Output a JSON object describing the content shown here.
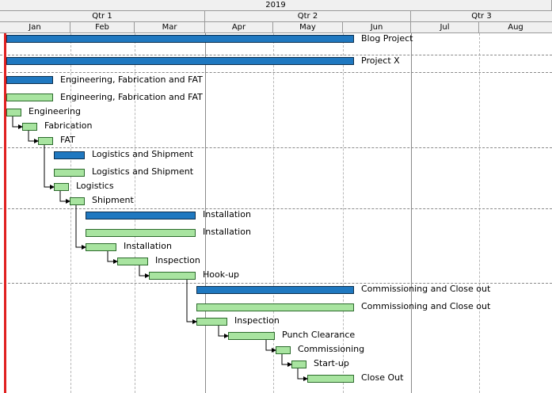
{
  "timescale": {
    "year": "2019",
    "quarters": [
      "Qtr 1",
      "Qtr 2",
      "Qtr 3"
    ],
    "months": [
      "Jan",
      "Feb",
      "Mar",
      "Apr",
      "May",
      "Jun",
      "Jul",
      "Aug"
    ]
  },
  "rows": [
    {
      "label": "Blog Project",
      "type": "summary"
    },
    {
      "label": "Project X",
      "type": "summary"
    },
    {
      "label": "Engineering, Fabrication and FAT",
      "type": "summary"
    },
    {
      "label": "Engineering, Fabrication and FAT",
      "type": "baseline"
    },
    {
      "label": "Engineering",
      "type": "task"
    },
    {
      "label": "Fabrication",
      "type": "task"
    },
    {
      "label": "FAT",
      "type": "task"
    },
    {
      "label": "Logistics and Shipment",
      "type": "summary"
    },
    {
      "label": "Logistics and Shipment",
      "type": "baseline"
    },
    {
      "label": "Logistics",
      "type": "task"
    },
    {
      "label": "Shipment",
      "type": "task"
    },
    {
      "label": "Installation",
      "type": "summary"
    },
    {
      "label": "Installation",
      "type": "baseline"
    },
    {
      "label": "Installation",
      "type": "task"
    },
    {
      "label": "Inspection",
      "type": "task"
    },
    {
      "label": "Hook-up",
      "type": "task"
    },
    {
      "label": "Commissioning and Close out",
      "type": "summary"
    },
    {
      "label": "Commissioning and Close out",
      "type": "baseline"
    },
    {
      "label": "Inspection",
      "type": "task"
    },
    {
      "label": "Punch Clearance",
      "type": "task"
    },
    {
      "label": "Commissioning",
      "type": "task"
    },
    {
      "label": "Start-up",
      "type": "task"
    },
    {
      "label": "Close Out",
      "type": "task"
    }
  ],
  "colors": {
    "summary_bar": "#1f78c0",
    "task_bar": "#a8e4a0",
    "today_line": "#e02020",
    "header_bg": "#f0f0f0"
  }
}
